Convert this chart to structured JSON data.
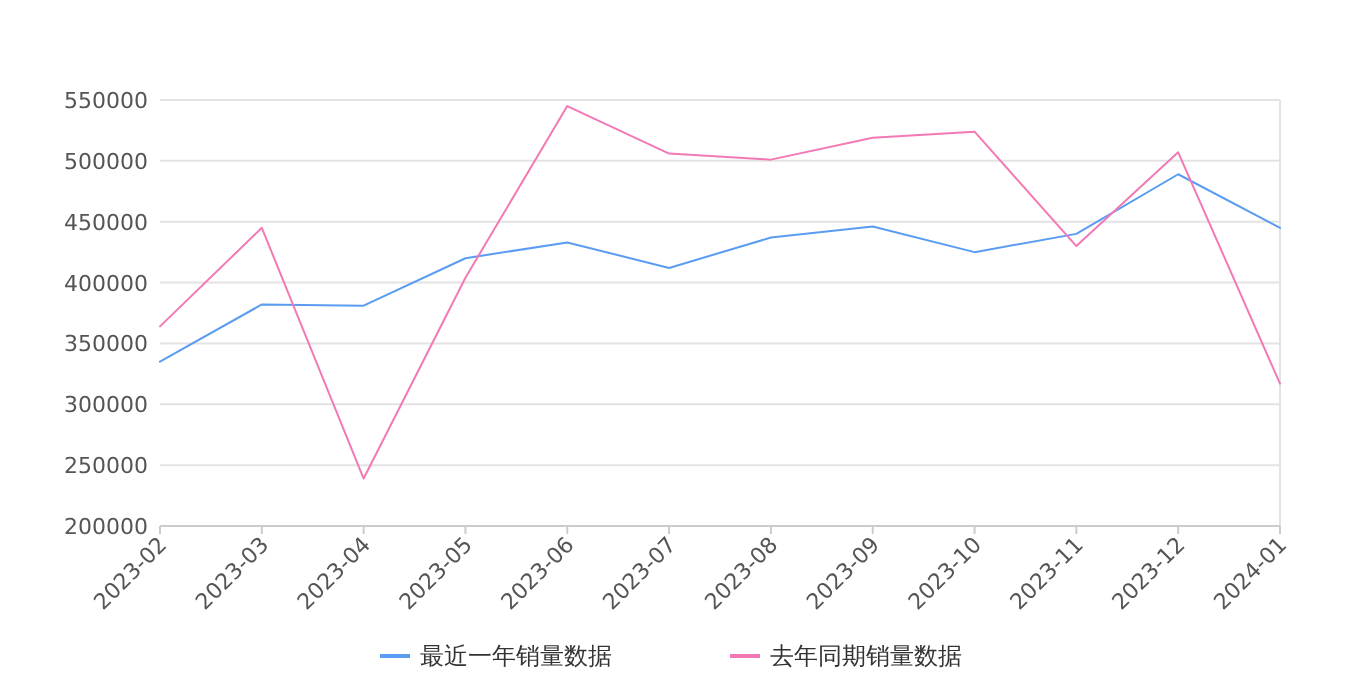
{
  "chart_data": {
    "type": "line",
    "categories": [
      "2023-02",
      "2023-03",
      "2023-04",
      "2023-05",
      "2023-06",
      "2023-07",
      "2023-08",
      "2023-09",
      "2023-10",
      "2023-11",
      "2023-12",
      "2024-01"
    ],
    "series": [
      {
        "name": "最近一年销量数据",
        "color": "#5a9cf2",
        "values": [
          335000,
          382000,
          381000,
          420000,
          433000,
          412000,
          437000,
          446000,
          425000,
          440000,
          489000,
          445000
        ]
      },
      {
        "name": "去年同期销量数据",
        "color": "#f279b3",
        "values": [
          364000,
          445000,
          239000,
          404000,
          545000,
          506000,
          501000,
          519000,
          524000,
          430000,
          507000,
          317000
        ]
      }
    ],
    "ylim": [
      200000,
      550000
    ],
    "yticks": [
      200000,
      250000,
      300000,
      350000,
      400000,
      450000,
      500000,
      550000
    ],
    "grid": "y",
    "legend": "bottom"
  }
}
